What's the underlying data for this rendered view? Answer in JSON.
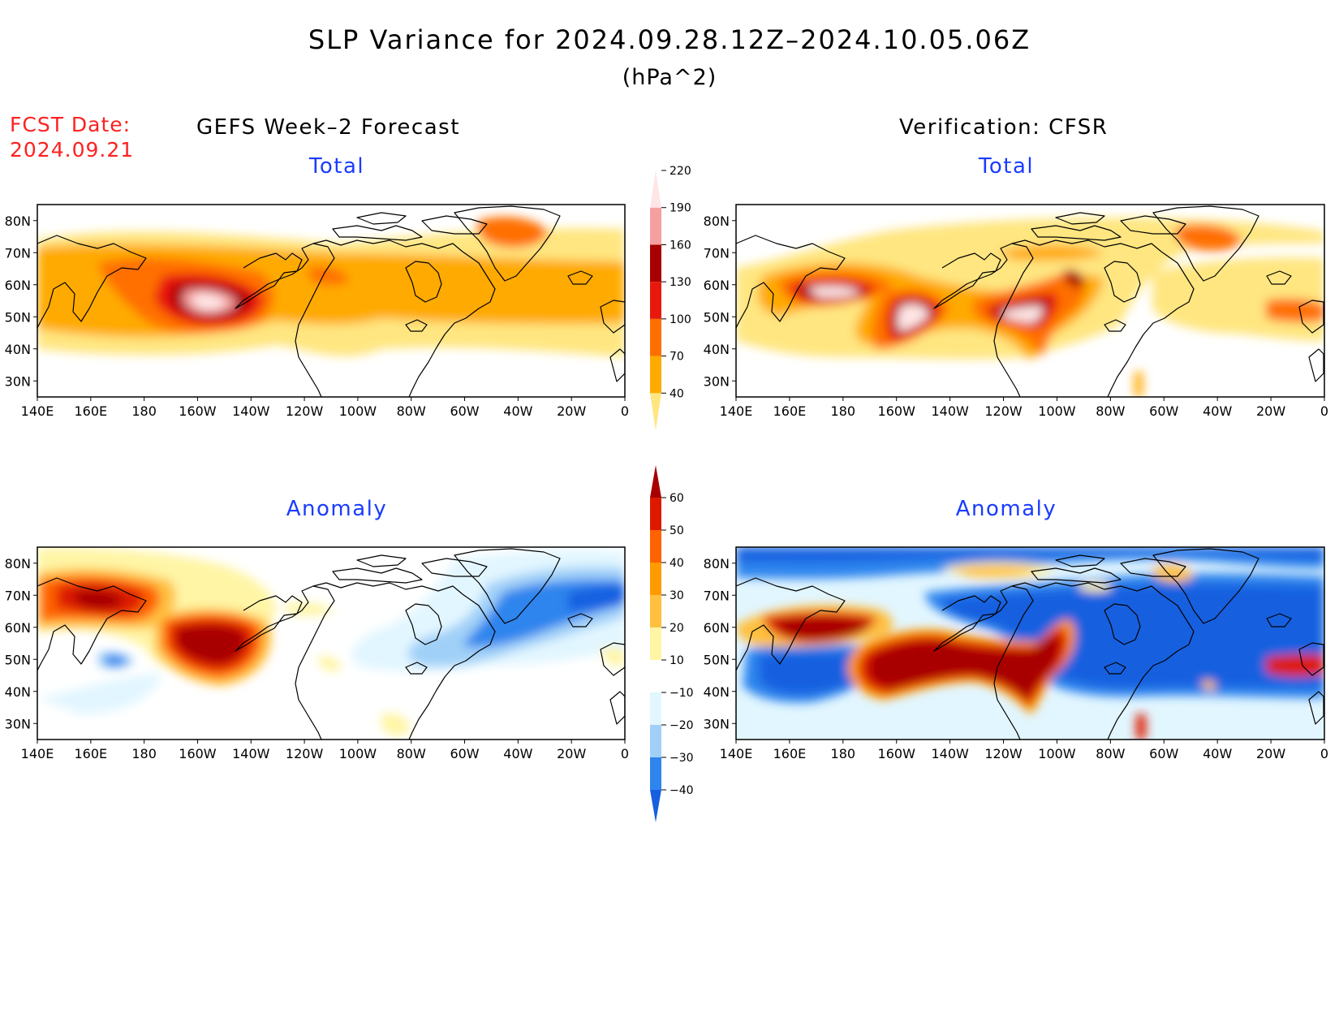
{
  "title": "SLP Variance for 2024.09.28.12Z–2024.10.05.06Z",
  "units": "(hPa^2)",
  "fcst_date_label": "FCST Date:",
  "fcst_date_value": "2024.09.21",
  "left_column_title": "GEFS Week–2 Forecast",
  "right_column_title": "Verification: CFSR",
  "panel_labels": {
    "total": "Total",
    "anomaly": "Anomaly"
  },
  "map_axes": {
    "lon_range": [
      "140E",
      "0"
    ],
    "lat_range": [
      "25N",
      "85N"
    ],
    "lon_ticks": [
      "140E",
      "160E",
      "180",
      "160W",
      "140W",
      "120W",
      "100W",
      "80W",
      "60W",
      "40W",
      "20W",
      "0"
    ],
    "lat_ticks": [
      "80N",
      "70N",
      "60N",
      "50N",
      "40N",
      "30N"
    ]
  },
  "colorbar_total": {
    "levels": [
      "40",
      "70",
      "100",
      "130",
      "160",
      "190",
      "220"
    ],
    "colors": [
      "#ffe680",
      "#ffaa00",
      "#ff6f00",
      "#e8190c",
      "#a80000",
      "#f5a0a0",
      "#ffe6e6"
    ]
  },
  "colorbar_anomaly": {
    "levels": [
      "−40",
      "−30",
      "−20",
      "−10",
      "10",
      "20",
      "30",
      "40",
      "50",
      "60"
    ],
    "colors": [
      "#1660e0",
      "#2f85ee",
      "#a0d0f8",
      "#e2f6ff",
      "#ffffff",
      "#fff5a5",
      "#ffc040",
      "#ff9a00",
      "#ff6200",
      "#dd1a00",
      "#a80000"
    ]
  },
  "panels": [
    {
      "name": "forecast-total",
      "label": "Total"
    },
    {
      "name": "verification-total",
      "label": "Total"
    },
    {
      "name": "forecast-anomaly",
      "label": "Anomaly"
    },
    {
      "name": "verification-anomaly",
      "label": "Anomaly"
    }
  ]
}
